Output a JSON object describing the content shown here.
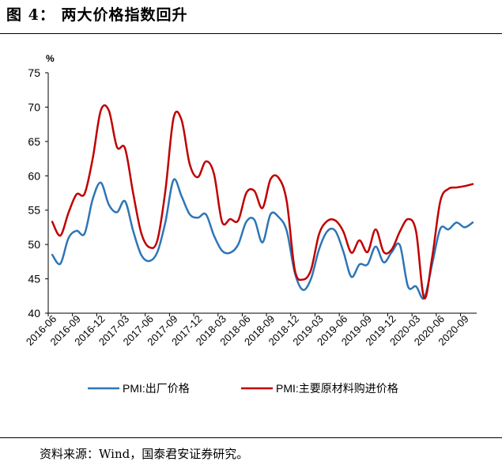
{
  "figure": {
    "title": "图 4： 两大价格指数回升",
    "source": "资料来源：Wind，国泰君安证券研究。"
  },
  "colors": {
    "series_blue": "#2e75b6",
    "series_red": "#c00000",
    "axis": "#000000"
  },
  "chart_data": {
    "type": "line",
    "title": "",
    "xlabel": "",
    "ylabel": "%",
    "ylim": [
      40,
      75
    ],
    "yticks": [
      40,
      45,
      50,
      55,
      60,
      65,
      70,
      75
    ],
    "grid": false,
    "legend_position": "bottom",
    "x": [
      "2016-06",
      "2016-07",
      "2016-08",
      "2016-09",
      "2016-10",
      "2016-11",
      "2016-12",
      "2017-01",
      "2017-02",
      "2017-03",
      "2017-04",
      "2017-05",
      "2017-06",
      "2017-07",
      "2017-08",
      "2017-09",
      "2017-10",
      "2017-11",
      "2017-12",
      "2018-01",
      "2018-02",
      "2018-03",
      "2018-04",
      "2018-05",
      "2018-06",
      "2018-07",
      "2018-08",
      "2018-09",
      "2018-10",
      "2018-11",
      "2018-12",
      "2019-01",
      "2019-02",
      "2019-03",
      "2019-04",
      "2019-05",
      "2019-06",
      "2019-07",
      "2019-08",
      "2019-09",
      "2019-10",
      "2019-11",
      "2019-12",
      "2020-01",
      "2020-02",
      "2020-03",
      "2020-04",
      "2020-05",
      "2020-06",
      "2020-07",
      "2020-08",
      "2020-09",
      "2020-10"
    ],
    "x_tick_labels": [
      "2016-06",
      "2016-09",
      "2016-12",
      "2017-03",
      "2017-06",
      "2017-09",
      "2017-12",
      "2018-03",
      "2018-06",
      "2018-09",
      "2018-12",
      "2019-03",
      "2019-06",
      "2019-09",
      "2019-12",
      "2020-03",
      "2020-06",
      "2020-09"
    ],
    "series": [
      {
        "name": "PMI:出厂价格",
        "color": "#2e75b6",
        "values": [
          48.5,
          47.2,
          50.9,
          52.0,
          51.6,
          56.6,
          59.0,
          55.8,
          54.7,
          56.3,
          52.0,
          48.5,
          47.6,
          48.9,
          53.3,
          59.4,
          57.0,
          54.4,
          53.9,
          54.4,
          51.3,
          49.1,
          48.8,
          50.0,
          53.3,
          53.6,
          50.3,
          54.4,
          54.0,
          52.0,
          45.9,
          43.4,
          45.0,
          49.3,
          51.9,
          52.0,
          49.0,
          45.3,
          47.1,
          47.1,
          49.7,
          47.4,
          48.9,
          49.9,
          43.9,
          43.9,
          42.2,
          47.2,
          52.3,
          52.2,
          53.2,
          52.5,
          53.2
        ]
      },
      {
        "name": "PMI:主要原材料购进价格",
        "color": "#c00000",
        "values": [
          53.3,
          51.3,
          54.6,
          57.3,
          57.4,
          62.5,
          69.5,
          69.5,
          64.2,
          64.0,
          57.5,
          51.7,
          49.6,
          50.6,
          57.9,
          68.4,
          68.1,
          61.7,
          59.8,
          62.1,
          60.3,
          53.3,
          53.7,
          53.5,
          57.5,
          57.8,
          55.3,
          59.5,
          59.7,
          56.3,
          46.3,
          44.9,
          46.3,
          51.5,
          53.4,
          53.5,
          51.9,
          48.8,
          50.6,
          48.9,
          52.2,
          48.9,
          49.3,
          51.9,
          53.7,
          51.9,
          42.2,
          48.2,
          56.3,
          58.1,
          58.3,
          58.5,
          58.8
        ]
      }
    ]
  }
}
